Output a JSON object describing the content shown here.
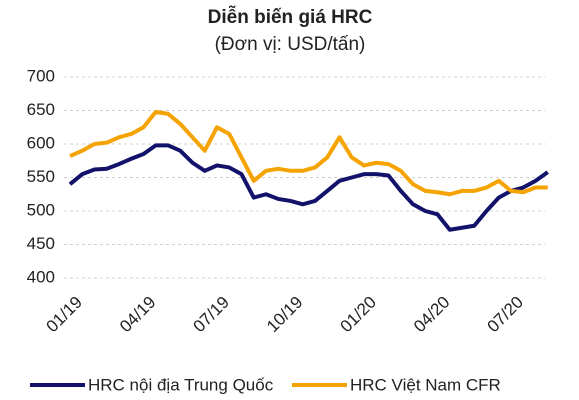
{
  "chart_data": {
    "type": "line",
    "title": "Diễn biến giá HRC",
    "subtitle": "(Đơn vị: USD/tấn)",
    "categories": [
      "01/19",
      null,
      null,
      null,
      null,
      null,
      "04/19",
      null,
      null,
      null,
      null,
      null,
      "07/19",
      null,
      null,
      null,
      null,
      null,
      "10/19",
      null,
      null,
      null,
      null,
      null,
      "01/20",
      null,
      null,
      null,
      null,
      null,
      "04/20",
      null,
      null,
      null,
      null,
      null,
      "07/20",
      null,
      null,
      null
    ],
    "series": [
      {
        "name": "HRC nội địa Trung Quốc",
        "color": "#12126b",
        "values": [
          540,
          555,
          562,
          563,
          570,
          578,
          585,
          598,
          598,
          590,
          572,
          560,
          568,
          565,
          555,
          520,
          525,
          518,
          515,
          510,
          515,
          530,
          545,
          550,
          555,
          555,
          553,
          530,
          510,
          500,
          495,
          472,
          475,
          478,
          500,
          520,
          530,
          535,
          545,
          558
        ]
      },
      {
        "name": "HRC Việt Nam CFR",
        "color": "#f5a300",
        "values": [
          582,
          590,
          600,
          602,
          610,
          615,
          625,
          648,
          645,
          630,
          610,
          590,
          625,
          615,
          580,
          545,
          560,
          563,
          560,
          560,
          565,
          580,
          610,
          580,
          568,
          572,
          570,
          560,
          540,
          530,
          528,
          525,
          530,
          530,
          535,
          545,
          530,
          528,
          535,
          535
        ]
      }
    ],
    "ylim": [
      400,
      700
    ],
    "yticks": [
      400,
      450,
      500,
      550,
      600,
      650,
      700
    ],
    "grid": true,
    "legend": "bottom"
  }
}
